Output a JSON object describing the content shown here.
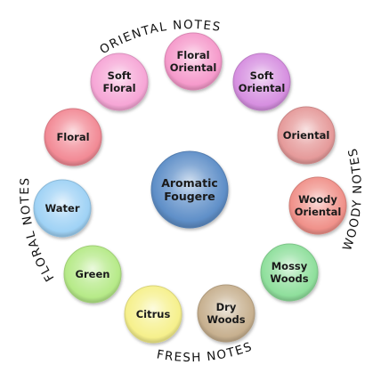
{
  "center": {
    "label_lines": [
      "Aromatic",
      "Fougere"
    ],
    "color": "#5f8fc8"
  },
  "notes": [
    {
      "id": "floral-oriental",
      "label_lines": [
        "Floral",
        "Oriental"
      ],
      "color": "#f59acb"
    },
    {
      "id": "soft-oriental",
      "label_lines": [
        "Soft",
        "Oriental"
      ],
      "color": "#d68fe0"
    },
    {
      "id": "oriental",
      "label_lines": [
        "Oriental"
      ],
      "color": "#e59a9a"
    },
    {
      "id": "woody-oriental",
      "label_lines": [
        "Woody",
        "Oriental"
      ],
      "color": "#f0918a"
    },
    {
      "id": "mossy-woods",
      "label_lines": [
        "Mossy",
        "Woods"
      ],
      "color": "#8fdf9c"
    },
    {
      "id": "dry-woods",
      "label_lines": [
        "Dry",
        "Woods"
      ],
      "color": "#c7b08f"
    },
    {
      "id": "citrus",
      "label_lines": [
        "Citrus"
      ],
      "color": "#f6f08c"
    },
    {
      "id": "green",
      "label_lines": [
        "Green"
      ],
      "color": "#b6ea88"
    },
    {
      "id": "water",
      "label_lines": [
        "Water"
      ],
      "color": "#9fd2f5"
    },
    {
      "id": "floral",
      "label_lines": [
        "Floral"
      ],
      "color": "#f28a95"
    },
    {
      "id": "soft-floral",
      "label_lines": [
        "Soft",
        "Floral"
      ],
      "color": "#f6a6d6"
    }
  ],
  "families": [
    {
      "id": "floral-notes",
      "text": "FLORAL NOTES"
    },
    {
      "id": "oriental-notes",
      "text": "ORIENTAL NOTES"
    },
    {
      "id": "woody-notes",
      "text": "WOODY NOTES"
    },
    {
      "id": "fresh-notes",
      "text": "FRESH NOTES"
    }
  ]
}
